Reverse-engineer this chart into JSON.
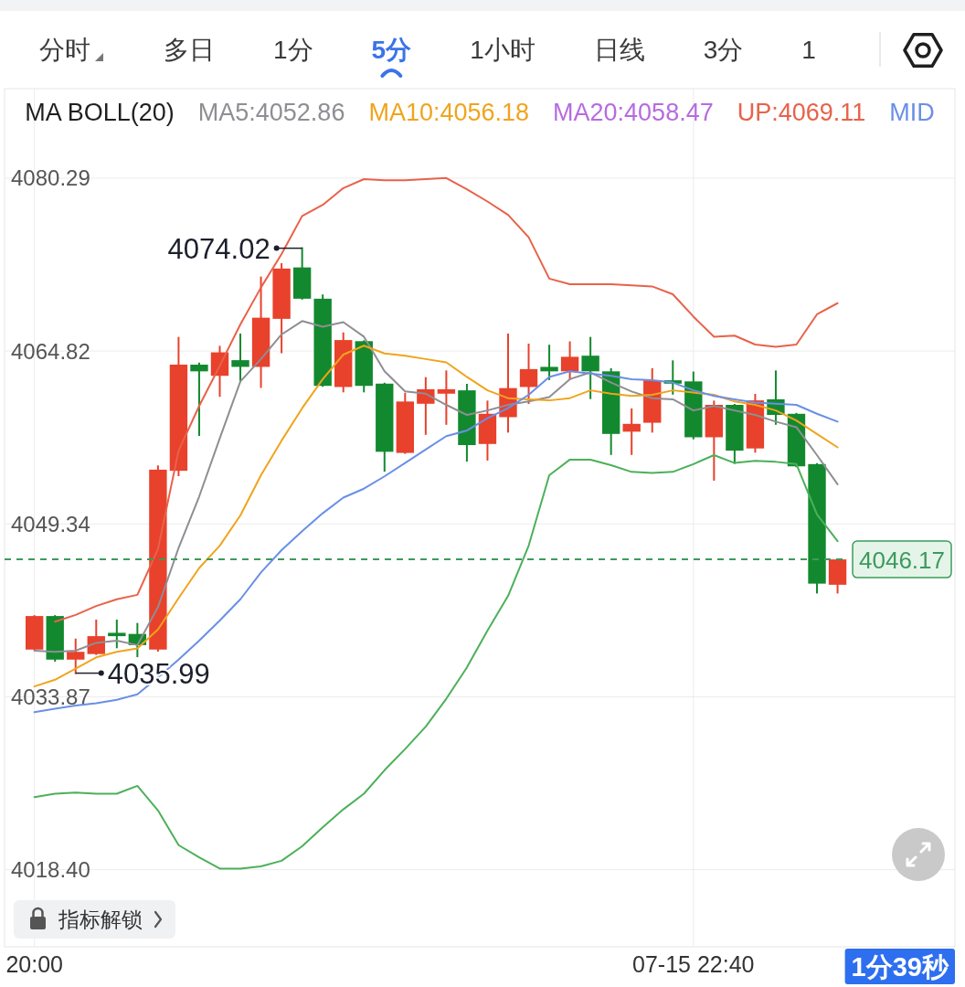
{
  "chart_data": {
    "type": "candlestick",
    "legend_title": "MA BOLL(20)",
    "legend": "top",
    "grid": true,
    "categories": [
      "20:00",
      null,
      null,
      null,
      null,
      null,
      null,
      null,
      null,
      null,
      null,
      null,
      null,
      null,
      null,
      null,
      null,
      null,
      null,
      null,
      null,
      null,
      null,
      null,
      null,
      null,
      null,
      null,
      null,
      null,
      null,
      null,
      "07-15 22:40",
      null,
      null,
      null,
      null,
      null,
      null,
      null
    ],
    "ohlc": [
      [
        4038.1,
        4041.1,
        4038.1,
        4041.1
      ],
      [
        4041.1,
        4041.1,
        4037.1,
        4037.2
      ],
      [
        4037.2,
        4039.0,
        4035.99,
        4037.9
      ],
      [
        4037.7,
        4040.7,
        4037.7,
        4039.3
      ],
      [
        4039.6,
        4040.7,
        4038.3,
        4039.3
      ],
      [
        4039.5,
        4040.4,
        4037.5,
        4038.5
      ],
      [
        4038.1,
        4054.5,
        4038.0,
        4054.2
      ],
      [
        4054.1,
        4066.0,
        4053.7,
        4063.6
      ],
      [
        4063.6,
        4063.7,
        4057.3,
        4063.0
      ],
      [
        4062.6,
        4065.2,
        4060.8,
        4064.7
      ],
      [
        4064.0,
        4066.3,
        4062.1,
        4063.4
      ],
      [
        4063.4,
        4071.4,
        4061.6,
        4067.8
      ],
      [
        4067.7,
        4072.6,
        4064.7,
        4072.2
      ],
      [
        4072.3,
        4074.02,
        4069.5,
        4069.5
      ],
      [
        4069.5,
        4069.8,
        4061.7,
        4061.7
      ],
      [
        4061.6,
        4066.4,
        4061.2,
        4065.8
      ],
      [
        4065.7,
        4065.7,
        4061.2,
        4061.7
      ],
      [
        4061.9,
        4061.9,
        4054.1,
        4055.8
      ],
      [
        4055.7,
        4061.0,
        4055.7,
        4060.3
      ],
      [
        4060.1,
        4062.4,
        4057.4,
        4061.4
      ],
      [
        4061.0,
        4063.0,
        4058.3,
        4061.4
      ],
      [
        4061.3,
        4061.8,
        4055.0,
        4056.4
      ],
      [
        4056.5,
        4060.3,
        4055.1,
        4059.2
      ],
      [
        4058.9,
        4066.3,
        4057.6,
        4061.5
      ],
      [
        4061.6,
        4065.4,
        4060.16,
        4063.2
      ],
      [
        4063.4,
        4065.3,
        4062.3,
        4063.0
      ],
      [
        4063.0,
        4065.6,
        4062.3,
        4064.3
      ],
      [
        4064.4,
        4066.0,
        4060.6,
        4063.0
      ],
      [
        4063.0,
        4063.2,
        4055.6,
        4057.4
      ],
      [
        4057.6,
        4059.6,
        4055.6,
        4058.3
      ],
      [
        4058.4,
        4063.2,
        4057.6,
        4062.2
      ],
      [
        4062.2,
        4063.9,
        4061.0,
        4061.9
      ],
      [
        4062.1,
        4062.9,
        4057.0,
        4057.1
      ],
      [
        4057.1,
        4060.3,
        4053.3,
        4060.0
      ],
      [
        4060.0,
        4060.0,
        4054.8,
        4055.9
      ],
      [
        4056.1,
        4060.9,
        4055.8,
        4060.4
      ],
      [
        4060.5,
        4063.0,
        4058.3,
        4059.1
      ],
      [
        4059.2,
        4059.2,
        4054.5,
        4054.5
      ],
      [
        4054.7,
        4054.7,
        4043.2,
        4044.0
      ],
      [
        4043.9,
        4046.17,
        4043.2,
        4046.17
      ]
    ],
    "colors": [
      "#e8412c",
      "#13892f",
      "#e8412c",
      "#e8412c",
      "#13892f",
      "#13892f",
      "#e8412c",
      "#e8412c",
      "#13892f",
      "#e8412c",
      "#13892f",
      "#e8412c",
      "#e8412c",
      "#13892f",
      "#13892f",
      "#e8412c",
      "#13892f",
      "#13892f",
      "#e8412c",
      "#e8412c",
      "#e8412c",
      "#13892f",
      "#e8412c",
      "#e8412c",
      "#e8412c",
      "#13892f",
      "#e8412c",
      "#13892f",
      "#13892f",
      "#e8412c",
      "#e8412c",
      "#13892f",
      "#13892f",
      "#e8412c",
      "#13892f",
      "#e8412c",
      "#13892f",
      "#13892f",
      "#13892f",
      "#e8412c"
    ],
    "series": [
      {
        "name": "MA5:4052.86",
        "type": "line",
        "color": "#8e8e93",
        "values": [
          4038.0,
          4037.9,
          4038.0,
          4038.7,
          4038.9,
          4038.5,
          4041.9,
          4047.2,
          4051.8,
          4057.0,
          4062.1,
          4064.1,
          4066.3,
          4067.5,
          4067.0,
          4067.4,
          4066.1,
          4063.0,
          4061.2,
          4061.0,
          4060.0,
          4059.1,
          4059.5,
          4060.0,
          4060.3,
          4060.7,
          4062.3,
          4062.9,
          4062.0,
          4061.2,
          4060.6,
          4060.5,
          4059.5,
          4059.9,
          4059.5,
          4059.1,
          4058.5,
          4058.0,
          4055.5,
          4052.9
        ]
      },
      {
        "name": "MA10:4056.18",
        "type": "line",
        "color": "#f0a41e",
        "values": [
          4034.8,
          4035.4,
          4036.4,
          4037.4,
          4037.9,
          4038.2,
          4039.9,
          4042.7,
          4045.4,
          4047.4,
          4050.1,
          4053.7,
          4056.8,
          4059.7,
          4062.3,
          4064.5,
          4065.3,
          4064.6,
          4064.4,
          4064.1,
          4063.8,
          4062.5,
          4061.3,
          4060.6,
          4060.5,
          4060.4,
          4060.6,
          4061.3,
          4061.0,
          4060.8,
          4060.9,
          4061.3,
          4061.1,
          4060.9,
          4060.3,
          4060.0,
          4059.5,
          4058.6,
          4057.4,
          4056.2
        ]
      },
      {
        "name": "MA20:4058.47",
        "type": "line",
        "color": "#b66be0",
        "values": [
          null,
          null,
          null,
          null,
          null,
          null,
          null,
          null,
          null,
          null,
          null,
          null,
          null,
          null,
          null,
          null,
          null,
          null,
          null,
          null,
          null,
          null,
          null,
          null,
          null,
          null,
          null,
          null,
          null,
          null,
          null,
          null,
          null,
          null,
          null,
          null,
          null,
          null,
          null,
          null
        ]
      },
      {
        "name": "UP:4069.11",
        "type": "line",
        "color": "#e8624a",
        "values": [
          null,
          4040.6,
          4041.2,
          4042.0,
          4042.6,
          4043.0,
          4047.1,
          4055.9,
          4059.9,
          4063.5,
          4067.2,
          4070.5,
          4073.5,
          4076.9,
          4077.9,
          4079.4,
          4080.2,
          4080.1,
          4080.1,
          4080.2,
          4080.3,
          4079.3,
          4078.2,
          4077.0,
          4075.0,
          4071.3,
          4070.8,
          4070.8,
          4070.8,
          4070.7,
          4070.6,
          4069.9,
          4067.9,
          4066.1,
          4066.2,
          4065.4,
          4065.2,
          4065.4,
          4068.1,
          4069.1
        ]
      },
      {
        "name": "MID",
        "type": "line",
        "color": "#6a8fe6",
        "values": [
          4032.5,
          4032.8,
          4033.1,
          4033.3,
          4033.6,
          4034.1,
          4035.6,
          4037.2,
          4038.9,
          4040.7,
          4042.6,
          4045.0,
          4047.0,
          4048.7,
          4050.3,
          4051.7,
          4052.5,
          4053.6,
          4054.8,
          4056.0,
          4057.2,
          4057.7,
          4058.8,
          4059.7,
          4060.9,
          4062.5,
          4063.0,
          4062.8,
          4062.6,
          4062.3,
          4062.2,
          4062.0,
          4061.3,
          4060.8,
          4060.5,
          4060.2,
          4060.1,
          4060.0,
          4059.2,
          4058.5
        ]
      },
      {
        "type": "line",
        "color": "#4cb05a",
        "values": [
          4024.9,
          4025.2,
          4025.3,
          4025.2,
          4025.2,
          4025.9,
          4023.7,
          4020.6,
          4019.5,
          4018.5,
          4018.5,
          4018.7,
          4019.2,
          4020.5,
          4022.2,
          4023.8,
          4025.2,
          4027.3,
          4029.2,
          4031.2,
          4033.7,
          4036.5,
          4039.8,
          4042.9,
          4047.4,
          4053.7,
          4055.1,
          4055.1,
          4054.6,
          4054.0,
          4053.9,
          4054.0,
          4054.7,
          4055.5,
          4054.8,
          4055.0,
          4054.9,
          4054.7,
          4050.2,
          4047.8
        ]
      }
    ],
    "ylim": [
      4011.5,
      4088.3
    ],
    "yticks": [
      {
        "value": 4018.4,
        "label": "4018.40"
      },
      4033.87,
      4049.34,
      4064.82,
      4080.29
    ],
    "ref_lines": [
      {
        "axis": "y",
        "value": 4046.17,
        "label": "4046.17",
        "color": "#3d9a5c",
        "line_style": "dashed"
      }
    ],
    "annotations": [
      "4074.02",
      "4035.99",
      "分时",
      "多日",
      "1分",
      "5分",
      "1小时",
      "日线",
      "3分",
      "1",
      "指标解锁",
      "1分39秒"
    ]
  }
}
